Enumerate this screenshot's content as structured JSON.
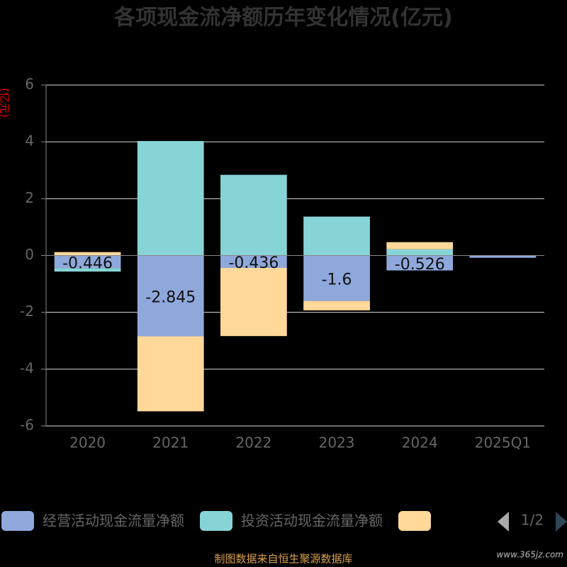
{
  "chart_data": {
    "type": "bar",
    "stacked": true,
    "title": "各项现金流净额历年变化情况(亿元)",
    "y_label": "(亿元)",
    "categories": [
      "2020",
      "2021",
      "2022",
      "2023",
      "2024",
      "2025Q1"
    ],
    "series": [
      {
        "name": "经营活动现金流量净额",
        "color": "#8fa8dc",
        "values": [
          -0.446,
          -2.845,
          -0.436,
          -1.6,
          -0.526,
          -0.08
        ],
        "value_labels": [
          "-0.446",
          "-2.845",
          "-0.436",
          "-1.6",
          "-0.526",
          null
        ]
      },
      {
        "name": "投资活动现金流量净额",
        "color": "#87d4d6",
        "values": [
          -0.12,
          4.03,
          2.84,
          1.37,
          0.22,
          0
        ]
      },
      {
        "color": "#ffd89a",
        "values": [
          0.12,
          -2.64,
          -2.4,
          -0.33,
          0.25,
          0
        ]
      }
    ],
    "ylim": [
      -6,
      6
    ],
    "yticks": [
      -6,
      -4,
      -2,
      0,
      2,
      4,
      6
    ],
    "grid": true,
    "legend_page": "1/2",
    "source": "制图数据来自恒生聚源数据库",
    "watermark": "www.365jz.com"
  }
}
